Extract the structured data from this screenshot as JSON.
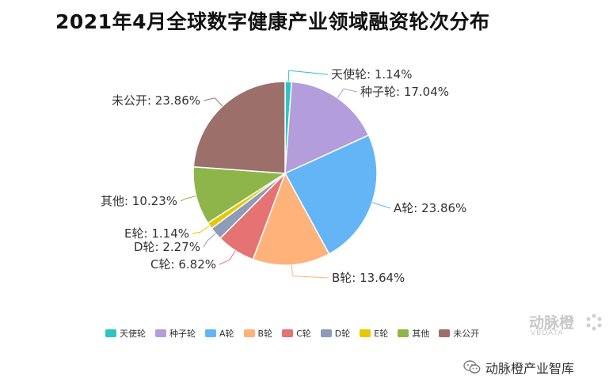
{
  "chart_data": {
    "type": "pie",
    "title": "2021年4月全球数字健康产业领域融资轮次分布",
    "slices": [
      {
        "name": "天使轮",
        "label": "天使轮: 1.14%",
        "value": 1.14,
        "color": "#2ec4c4"
      },
      {
        "name": "种子轮",
        "label": "种子轮: 17.04%",
        "value": 17.04,
        "color": "#b39ddb"
      },
      {
        "name": "A轮",
        "label": "A轮: 23.86%",
        "value": 23.86,
        "color": "#64b5f6"
      },
      {
        "name": "B轮",
        "label": "B轮: 13.64%",
        "value": 13.64,
        "color": "#ffb27a"
      },
      {
        "name": "C轮",
        "label": "C轮: 6.82%",
        "value": 6.82,
        "color": "#e57373"
      },
      {
        "name": "D轮",
        "label": "D轮: 2.27%",
        "value": 2.27,
        "color": "#8e9cb8"
      },
      {
        "name": "E轮",
        "label": "E轮: 1.14%",
        "value": 1.14,
        "color": "#e6c800"
      },
      {
        "name": "其他",
        "label": "其他: 10.23%",
        "value": 10.23,
        "color": "#8db54a"
      },
      {
        "name": "未公开",
        "label": "未公开: 23.86%",
        "value": 23.86,
        "color": "#9c6f6a"
      }
    ],
    "legend_position": "bottom"
  },
  "watermark": {
    "brand": "动脉橙",
    "sub": "VBDATA"
  },
  "footer": {
    "text": "动脉橙产业智库",
    "icon": "wechat-icon"
  }
}
